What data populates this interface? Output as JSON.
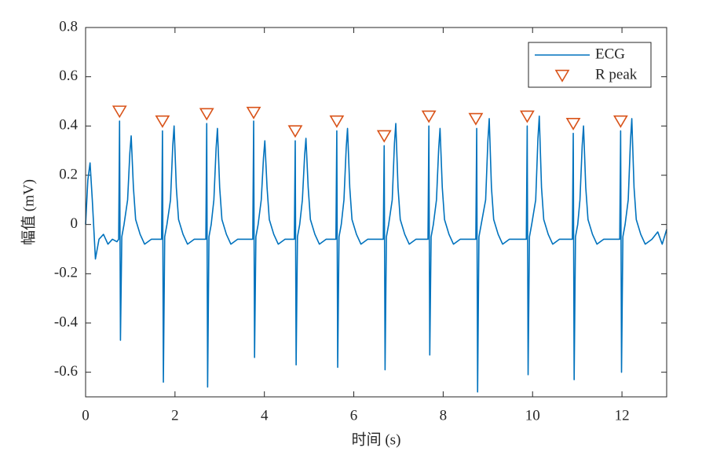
{
  "chart_data": {
    "type": "line",
    "xlabel": "时间 (s)",
    "ylabel": "幅值 (mV)",
    "xlim": [
      0,
      13
    ],
    "ylim": [
      -0.7,
      0.8
    ],
    "xticks": [
      0,
      2,
      4,
      6,
      8,
      10,
      12
    ],
    "yticks": [
      -0.6,
      -0.4,
      -0.2,
      0,
      0.2,
      0.4,
      0.6,
      0.8
    ],
    "legend": "upper right",
    "box": true,
    "series": [
      {
        "name": "ECG",
        "color": "#0072bd",
        "style": "line",
        "x": [
          0,
          0.05,
          0.1,
          0.15,
          0.22,
          0.3,
          0.4,
          0.5,
          0.6,
          0.7,
          0.74,
          0.76,
          0.78,
          0.81,
          0.86,
          0.94,
          0.99,
          1.02,
          1.07,
          1.12,
          1.22,
          1.32,
          1.47,
          1.7,
          1.72,
          1.74,
          1.77,
          1.82,
          1.9,
          1.95,
          1.98,
          2.03,
          2.08,
          2.18,
          2.28,
          2.43,
          2.69,
          2.71,
          2.73,
          2.76,
          2.81,
          2.87,
          2.92,
          2.95,
          3.0,
          3.05,
          3.15,
          3.25,
          3.4,
          3.74,
          3.76,
          3.78,
          3.81,
          3.86,
          3.93,
          3.98,
          4.01,
          4.06,
          4.11,
          4.21,
          4.31,
          4.46,
          4.67,
          4.69,
          4.71,
          4.74,
          4.79,
          4.85,
          4.9,
          4.93,
          4.98,
          5.03,
          5.13,
          5.23,
          5.38,
          5.6,
          5.62,
          5.64,
          5.67,
          5.72,
          5.78,
          5.83,
          5.86,
          5.91,
          5.96,
          6.06,
          6.16,
          6.31,
          6.66,
          6.68,
          6.7,
          6.73,
          6.78,
          6.86,
          6.91,
          6.94,
          6.99,
          7.04,
          7.14,
          7.24,
          7.39,
          7.66,
          7.68,
          7.7,
          7.73,
          7.78,
          7.85,
          7.9,
          7.93,
          7.98,
          8.03,
          8.13,
          8.23,
          8.38,
          8.73,
          8.75,
          8.77,
          8.8,
          8.85,
          8.95,
          9.0,
          9.03,
          9.08,
          9.13,
          9.23,
          9.33,
          9.48,
          9.86,
          9.88,
          9.9,
          9.93,
          9.98,
          10.07,
          10.12,
          10.15,
          10.2,
          10.25,
          10.35,
          10.45,
          10.6,
          10.89,
          10.91,
          10.93,
          10.96,
          11.01,
          11.06,
          11.11,
          11.14,
          11.19,
          11.24,
          11.34,
          11.44,
          11.59,
          11.95,
          11.97,
          11.99,
          12.02,
          12.07,
          12.14,
          12.19,
          12.22,
          12.27,
          12.32,
          12.42,
          12.52,
          12.67,
          12.8,
          12.9,
          13.0
        ],
        "values": [
          0,
          0.18,
          0.25,
          0.1,
          -0.14,
          -0.06,
          -0.04,
          -0.08,
          -0.06,
          -0.07,
          -0.06,
          0.42,
          -0.47,
          -0.05,
          0,
          0.1,
          0.29,
          0.36,
          0.15,
          0.02,
          -0.04,
          -0.08,
          -0.06,
          -0.06,
          0.38,
          -0.64,
          -0.05,
          0,
          0.1,
          0.32,
          0.4,
          0.15,
          0.02,
          -0.04,
          -0.08,
          -0.06,
          -0.06,
          0.41,
          -0.66,
          -0.05,
          0,
          0.1,
          0.31,
          0.39,
          0.15,
          0.02,
          -0.04,
          -0.08,
          -0.06,
          -0.06,
          0.42,
          -0.54,
          -0.05,
          0,
          0.1,
          0.27,
          0.34,
          0.15,
          0.02,
          -0.04,
          -0.08,
          -0.06,
          -0.06,
          0.34,
          -0.57,
          -0.05,
          0,
          0.1,
          0.28,
          0.35,
          0.15,
          0.02,
          -0.04,
          -0.08,
          -0.06,
          -0.06,
          0.38,
          -0.58,
          -0.05,
          0,
          0.1,
          0.31,
          0.39,
          0.15,
          0.02,
          -0.04,
          -0.08,
          -0.06,
          -0.06,
          0.32,
          -0.59,
          -0.05,
          0,
          0.1,
          0.33,
          0.41,
          0.15,
          0.02,
          -0.04,
          -0.08,
          -0.06,
          -0.06,
          0.4,
          -0.53,
          -0.05,
          0,
          0.1,
          0.31,
          0.39,
          0.15,
          0.02,
          -0.04,
          -0.08,
          -0.06,
          -0.06,
          0.39,
          -0.68,
          -0.05,
          0,
          0.1,
          0.34,
          0.43,
          0.15,
          0.02,
          -0.04,
          -0.08,
          -0.06,
          -0.06,
          0.4,
          -0.61,
          -0.05,
          0,
          0.1,
          0.35,
          0.44,
          0.15,
          0.02,
          -0.04,
          -0.08,
          -0.06,
          -0.06,
          0.37,
          -0.63,
          -0.05,
          0,
          0.1,
          0.32,
          0.4,
          0.15,
          0.02,
          -0.04,
          -0.08,
          -0.06,
          -0.06,
          0.38,
          -0.6,
          -0.05,
          0,
          0.1,
          0.34,
          0.43,
          0.15,
          0.02,
          -0.04,
          -0.08,
          -0.06,
          -0.03,
          -0.08,
          -0.02
        ]
      },
      {
        "name": "R peak",
        "color": "#d95319",
        "style": "marker",
        "marker": "triangle-down",
        "x": [
          0.76,
          1.72,
          2.71,
          3.76,
          4.69,
          5.62,
          6.68,
          7.68,
          8.73,
          9.88,
          10.91,
          11.97
        ],
        "values": [
          0.46,
          0.42,
          0.45,
          0.455,
          0.38,
          0.42,
          0.36,
          0.44,
          0.43,
          0.44,
          0.41,
          0.42
        ]
      }
    ]
  }
}
